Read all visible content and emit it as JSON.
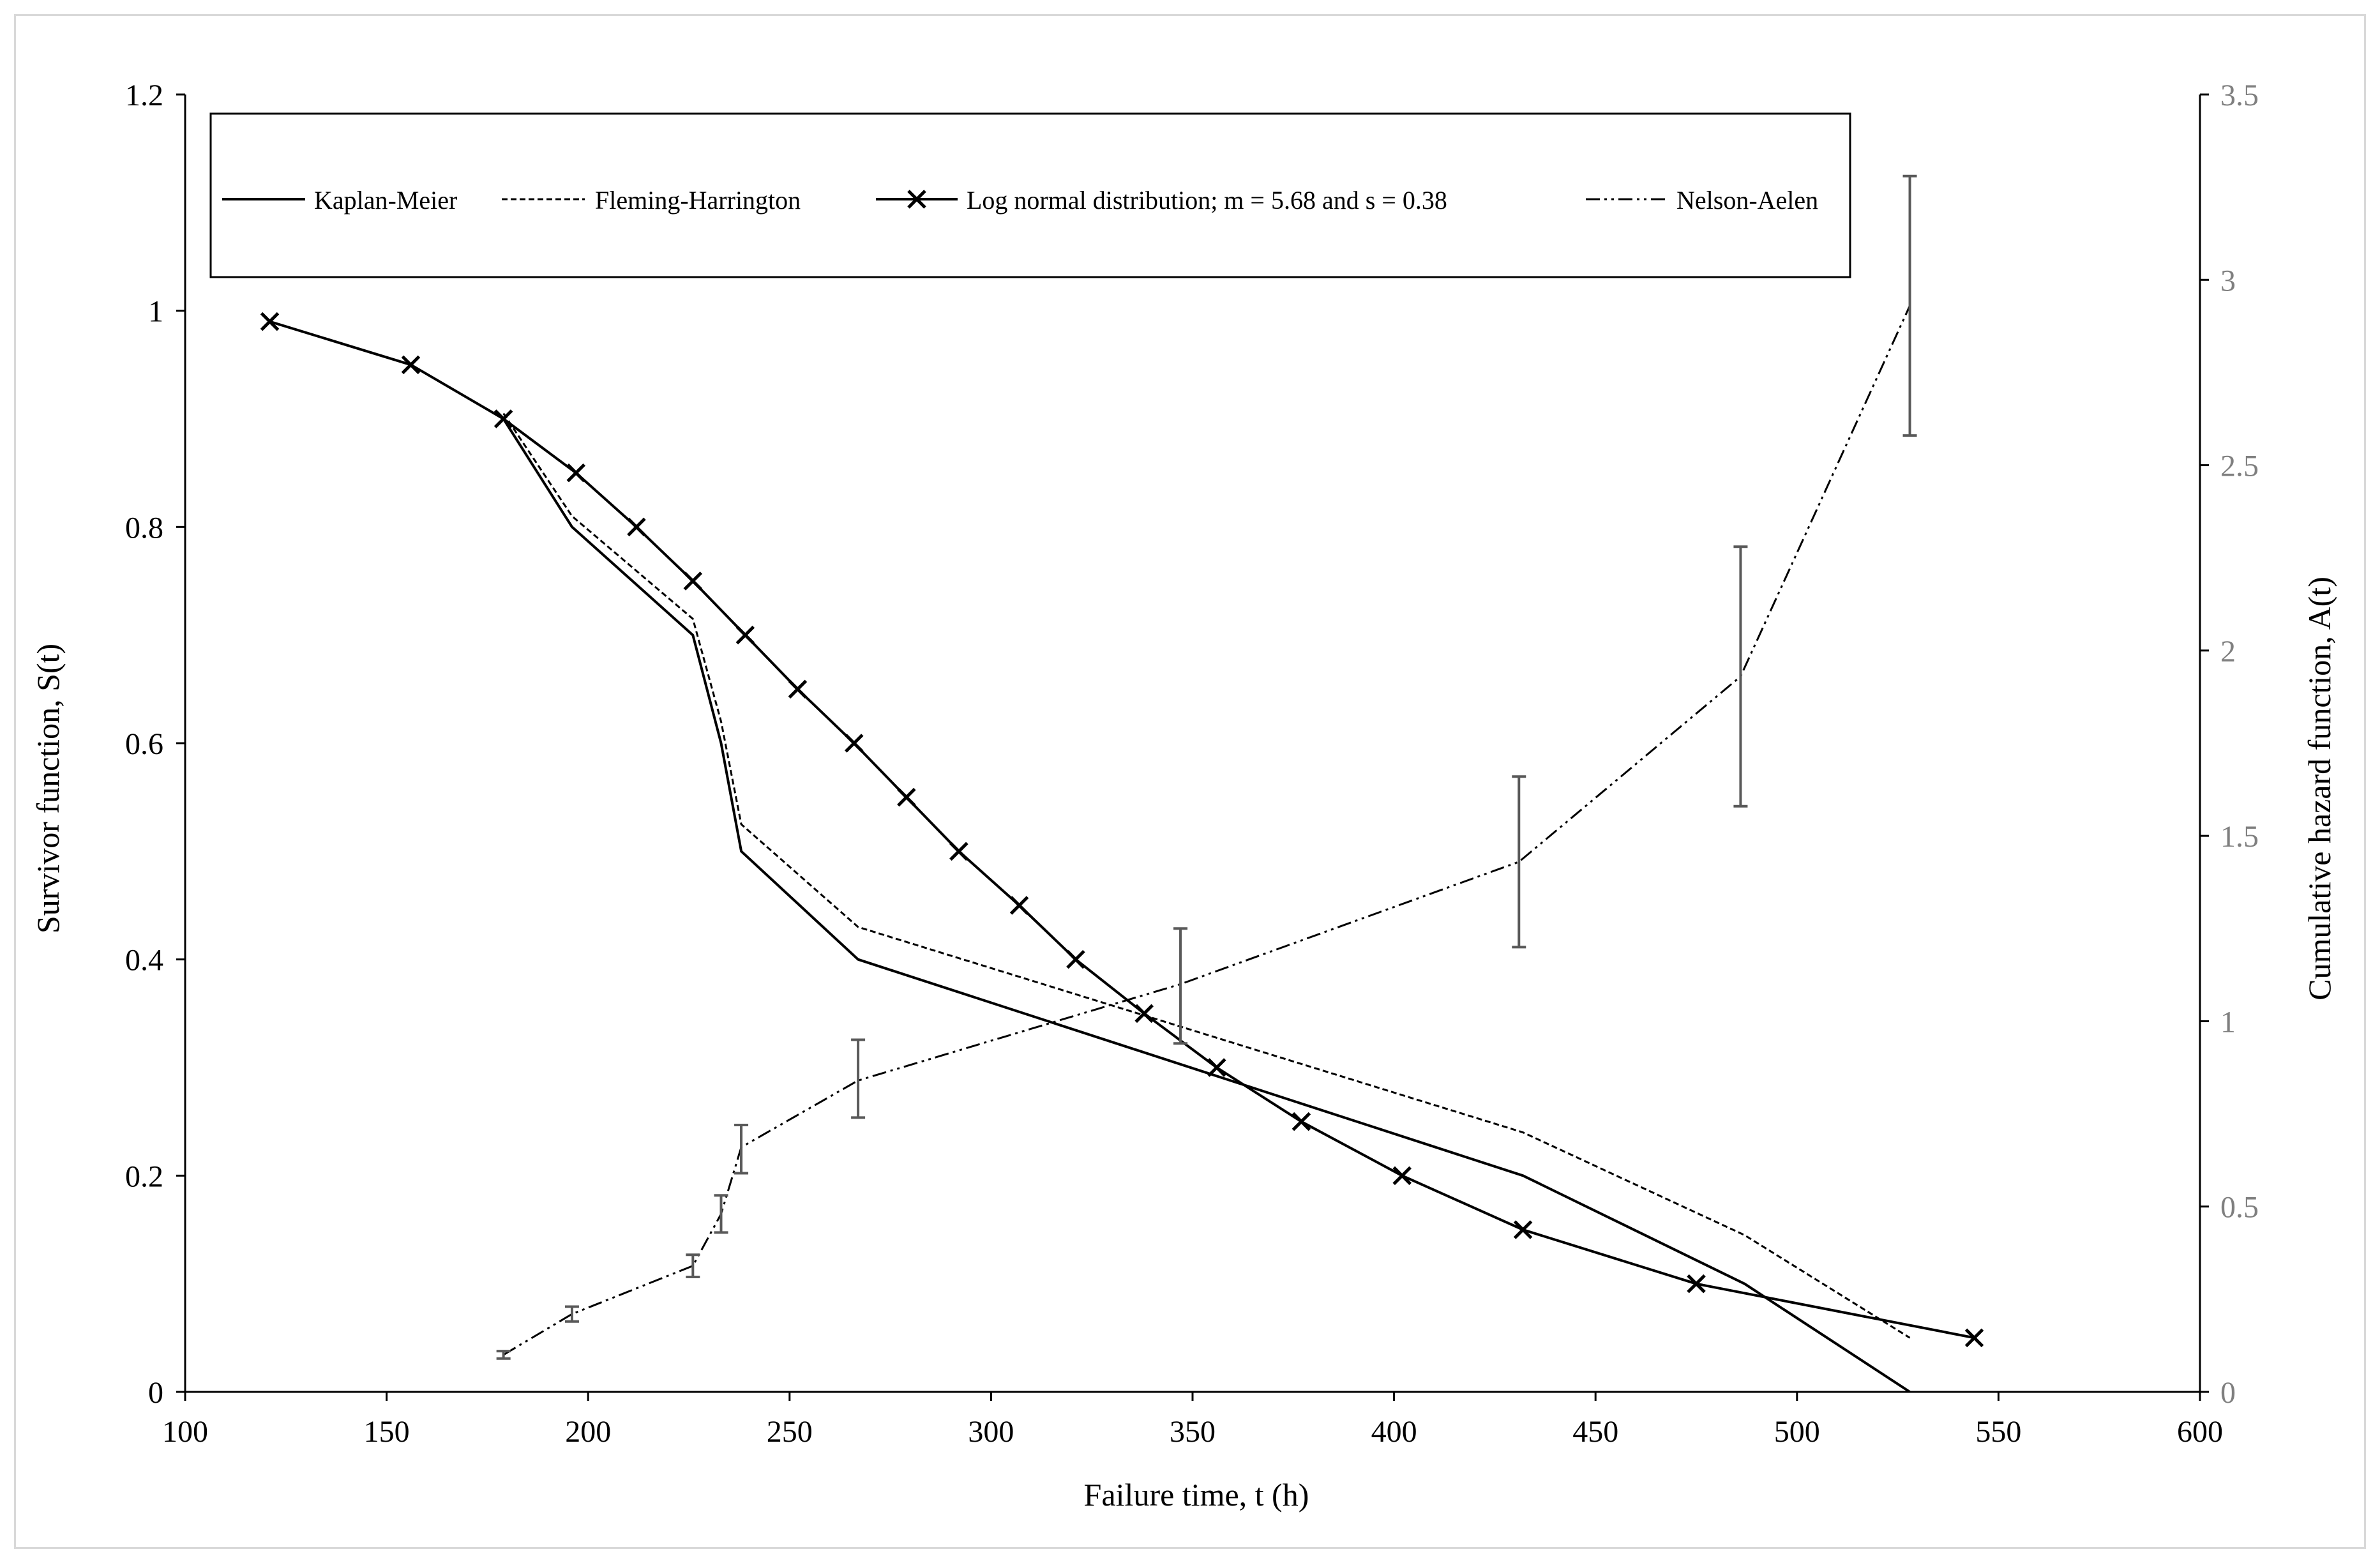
{
  "chart_data": {
    "type": "line",
    "title": "",
    "xlabel": "Failure time,  t (h)",
    "ylabel": "Survivor  function,  S(t)",
    "y2label": "Cumulative  hazard function,  A(t)",
    "xlim": [
      100,
      600
    ],
    "ylim": [
      0,
      1.2
    ],
    "y2lim": [
      0,
      3.5
    ],
    "x_ticks": [
      100,
      150,
      200,
      250,
      300,
      350,
      400,
      450,
      500,
      550,
      600
    ],
    "y_ticks": [
      0,
      0.2,
      0.4,
      0.6,
      0.8,
      1,
      1.2
    ],
    "y_tick_labels": [
      "0",
      "0.2",
      "0.4",
      "0.6",
      "0.8",
      "1",
      "1.2"
    ],
    "y2_ticks": [
      0,
      0.5,
      1,
      1.5,
      2,
      2.5,
      3,
      3.5
    ],
    "y2_tick_labels": [
      "0",
      "0.5",
      "1",
      "1.5",
      "2",
      "2.5",
      "3",
      "3.5"
    ],
    "grid": false,
    "legend_position": "top",
    "series": [
      {
        "name": "Kaplan-Meier",
        "axis": "left",
        "style": "solid",
        "x": [
          179,
          196,
          226,
          233,
          238,
          267,
          432,
          487,
          528
        ],
        "y": [
          0.9,
          0.8,
          0.7,
          0.6,
          0.5,
          0.4,
          0.2,
          0.1,
          0.0
        ]
      },
      {
        "name": "Fleming-Harrington",
        "axis": "left",
        "style": "dashed",
        "x": [
          179,
          196,
          226,
          233,
          238,
          267,
          432,
          487,
          528
        ],
        "y": [
          0.905,
          0.81,
          0.715,
          0.62,
          0.525,
          0.43,
          0.24,
          0.145,
          0.05
        ]
      },
      {
        "name": "Log normal distribution; m = 5.68 and s = 0.38",
        "axis": "left",
        "style": "solid-x-markers",
        "x": [
          121,
          156,
          179,
          197,
          212,
          226,
          239,
          252,
          266,
          279,
          292,
          307,
          321,
          338,
          356,
          377,
          402,
          432,
          475,
          544
        ],
        "y": [
          0.99,
          0.95,
          0.9,
          0.85,
          0.8,
          0.75,
          0.7,
          0.65,
          0.6,
          0.55,
          0.5,
          0.45,
          0.4,
          0.35,
          0.3,
          0.25,
          0.2,
          0.15,
          0.1,
          0.05
        ]
      },
      {
        "name": "Nelson-Aelen",
        "axis": "right",
        "style": "dash-dot",
        "x": [
          179,
          196,
          226,
          233,
          238,
          267,
          347,
          431,
          486,
          528
        ],
        "y": [
          0.1,
          0.21,
          0.34,
          0.48,
          0.66,
          0.84,
          1.1,
          1.43,
          1.93,
          2.93
        ],
        "error_low": [
          0.09,
          0.19,
          0.31,
          0.43,
          0.59,
          0.74,
          0.94,
          1.2,
          1.58,
          2.58
        ],
        "error_high": [
          0.11,
          0.23,
          0.37,
          0.53,
          0.72,
          0.95,
          1.25,
          1.66,
          2.28,
          3.28
        ]
      }
    ]
  }
}
